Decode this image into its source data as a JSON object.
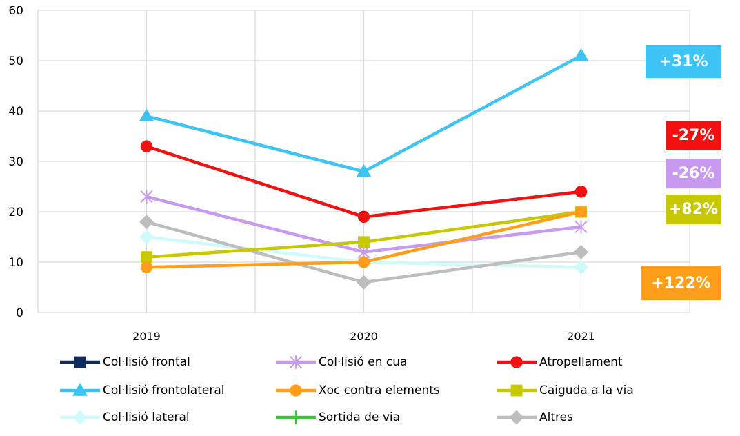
{
  "chart_data": {
    "type": "line",
    "title": "",
    "xlabel": "",
    "ylabel": "",
    "categories": [
      "2019",
      "2020",
      "2021"
    ],
    "ylim": [
      0,
      60
    ],
    "yticks": [
      0,
      10,
      20,
      30,
      40,
      50,
      60
    ],
    "grid": true,
    "legend_position": "bottom",
    "series": [
      {
        "name": "Col·lisió frontal",
        "color": "#0D2B5C",
        "marker": "square",
        "values": [
          null,
          null,
          null
        ]
      },
      {
        "name": "Col·lisió en cua",
        "color": "#C79AF0",
        "marker": "star",
        "values": [
          23,
          12,
          17
        ]
      },
      {
        "name": "Atropellament",
        "color": "#F21111",
        "marker": "circle",
        "values": [
          33,
          19,
          24
        ]
      },
      {
        "name": "Col·lisió frontolateral",
        "color": "#3EC4F4",
        "marker": "triangle",
        "values": [
          39,
          28,
          51
        ]
      },
      {
        "name": "Xoc contra elements",
        "color": "#FF9E1B",
        "marker": "circle",
        "values": [
          9,
          10,
          20
        ]
      },
      {
        "name": "Caiguda a la via",
        "color": "#C8C800",
        "marker": "square",
        "values": [
          11,
          14,
          20
        ]
      },
      {
        "name": "Col·lisió lateral",
        "color": "#CFFAFB",
        "marker": "diamond",
        "values": [
          15,
          10,
          9
        ]
      },
      {
        "name": "Sortida de via",
        "color": "#33CC33",
        "marker": "plus",
        "values": [
          null,
          null,
          null
        ]
      },
      {
        "name": "Altres",
        "color": "#BDBDBD",
        "marker": "diamond",
        "values": [
          18,
          6,
          12
        ]
      }
    ],
    "annotations": [
      {
        "text": "+31%",
        "color": "#3EC4F4"
      },
      {
        "text": "-27%",
        "color": "#F21111"
      },
      {
        "text": "-26%",
        "color": "#C79AF0"
      },
      {
        "text": "+82%",
        "color": "#C8C800"
      },
      {
        "text": "+122%",
        "color": "#FF9E1B"
      }
    ]
  }
}
